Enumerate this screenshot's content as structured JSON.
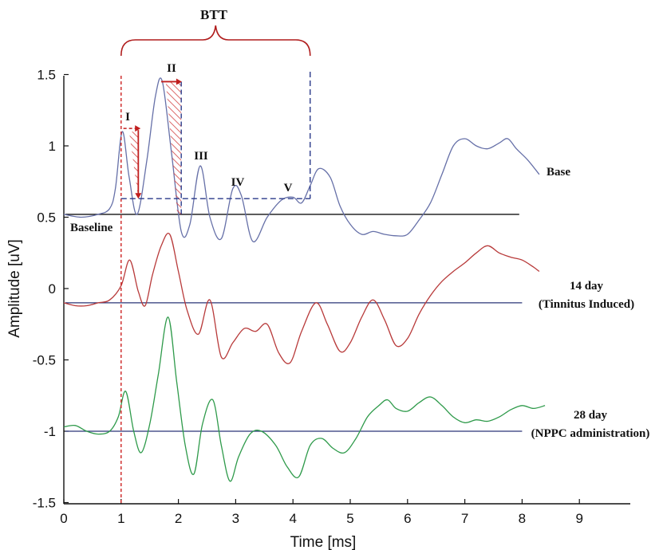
{
  "chart_data": {
    "type": "line",
    "xlabel": "Time [ms]",
    "ylabel": "Amplitude [uV]",
    "xlim": [
      0,
      9.9
    ],
    "ylim": [
      -1.5,
      1.5
    ],
    "xticks": [
      "0",
      "1",
      "2",
      "3",
      "4",
      "5",
      "6",
      "7",
      "8",
      "9"
    ],
    "yticks": [
      "1.5",
      "1",
      "0.5",
      "0",
      "-0.5",
      "-1",
      "-1.5"
    ],
    "ytick_values": [
      1.5,
      1,
      0.5,
      0,
      -0.5,
      -1,
      -1.5
    ],
    "grid": false,
    "legend": "none",
    "series": [
      {
        "name": "Base",
        "color": "#6670a8",
        "baseline": 0.52,
        "x": [
          0,
          0.3,
          0.6,
          0.8,
          0.9,
          1.02,
          1.14,
          1.28,
          1.45,
          1.6,
          1.72,
          1.88,
          2.05,
          2.2,
          2.38,
          2.55,
          2.75,
          2.95,
          3.1,
          3.3,
          3.55,
          3.8,
          4.0,
          4.15,
          4.3,
          4.45,
          4.65,
          4.82,
          5.0,
          5.2,
          5.4,
          5.6,
          5.8,
          6.0,
          6.2,
          6.4,
          6.6,
          6.8,
          7.0,
          7.2,
          7.4,
          7.6,
          7.75,
          7.9,
          8.1,
          8.3
        ],
        "y": [
          0.52,
          0.5,
          0.52,
          0.56,
          0.7,
          1.1,
          0.78,
          0.52,
          0.9,
          1.35,
          1.45,
          0.95,
          0.4,
          0.45,
          0.86,
          0.5,
          0.35,
          0.7,
          0.65,
          0.33,
          0.5,
          0.62,
          0.64,
          0.6,
          0.72,
          0.84,
          0.78,
          0.58,
          0.45,
          0.38,
          0.4,
          0.38,
          0.37,
          0.38,
          0.48,
          0.6,
          0.8,
          1.0,
          1.05,
          1.0,
          0.98,
          1.02,
          1.05,
          0.98,
          0.9,
          0.8
        ]
      },
      {
        "name": "14 day (Tinnitus Induced)",
        "color": "#b83a3a",
        "baseline": -0.1,
        "x": [
          0,
          0.2,
          0.4,
          0.6,
          0.8,
          1.0,
          1.15,
          1.3,
          1.42,
          1.55,
          1.7,
          1.85,
          2.0,
          2.15,
          2.35,
          2.55,
          2.75,
          2.95,
          3.15,
          3.35,
          3.55,
          3.75,
          3.95,
          4.15,
          4.4,
          4.6,
          4.82,
          5.0,
          5.2,
          5.4,
          5.6,
          5.8,
          6.0,
          6.2,
          6.4,
          6.6,
          6.8,
          7.0,
          7.2,
          7.4,
          7.6,
          7.8,
          8.0,
          8.2,
          8.3
        ],
        "y": [
          -0.1,
          -0.12,
          -0.12,
          -0.1,
          -0.08,
          0.02,
          0.2,
          -0.02,
          -0.12,
          0.1,
          0.3,
          0.38,
          0.12,
          -0.15,
          -0.32,
          -0.08,
          -0.48,
          -0.38,
          -0.28,
          -0.3,
          -0.25,
          -0.45,
          -0.52,
          -0.3,
          -0.1,
          -0.25,
          -0.44,
          -0.38,
          -0.2,
          -0.08,
          -0.22,
          -0.4,
          -0.35,
          -0.18,
          -0.05,
          0.05,
          0.12,
          0.18,
          0.25,
          0.3,
          0.25,
          0.22,
          0.2,
          0.15,
          0.12
        ]
      },
      {
        "name": "28 day (NPPC administration)",
        "color": "#2e9a4a",
        "baseline": -1.0,
        "x": [
          0,
          0.2,
          0.4,
          0.6,
          0.8,
          0.95,
          1.08,
          1.22,
          1.35,
          1.5,
          1.65,
          1.82,
          1.97,
          2.12,
          2.27,
          2.42,
          2.6,
          2.75,
          2.9,
          3.05,
          3.25,
          3.45,
          3.7,
          3.9,
          4.1,
          4.3,
          4.5,
          4.7,
          4.9,
          5.1,
          5.3,
          5.5,
          5.65,
          5.8,
          6.0,
          6.2,
          6.4,
          6.6,
          6.8,
          7.0,
          7.2,
          7.4,
          7.6,
          7.8,
          8.0,
          8.2,
          8.4
        ],
        "y": [
          -0.97,
          -0.96,
          -1.0,
          -1.02,
          -1.0,
          -0.9,
          -0.72,
          -1.0,
          -1.15,
          -0.95,
          -0.6,
          -0.2,
          -0.65,
          -1.1,
          -1.3,
          -0.95,
          -0.78,
          -1.1,
          -1.35,
          -1.18,
          -1.02,
          -1.0,
          -1.1,
          -1.25,
          -1.32,
          -1.1,
          -1.05,
          -1.12,
          -1.15,
          -1.05,
          -0.9,
          -0.82,
          -0.78,
          -0.84,
          -0.86,
          -0.8,
          -0.76,
          -0.82,
          -0.9,
          -0.94,
          -0.92,
          -0.93,
          -0.9,
          -0.85,
          -0.82,
          -0.84,
          -0.82
        ]
      }
    ],
    "curve_labels": [
      "Base",
      "14 day",
      "(Tinnitus Induced)",
      "28 day",
      "(NPPC administration)"
    ],
    "baseline_label": "Baseline",
    "peak_labels": [
      "I",
      "II",
      "III",
      "IV",
      "V"
    ],
    "btt_label": "BTT",
    "annotations": {
      "stimulus_marker_x": 1.0,
      "btt_start_x": 1.0,
      "btt_end_x": 4.3,
      "latency_level_y": 0.63,
      "peak_I_x": 1.02,
      "peak_II_x": 1.72,
      "peak_I_y": 1.1,
      "peak_II_y": 1.45,
      "vline_x": 2.05
    }
  }
}
